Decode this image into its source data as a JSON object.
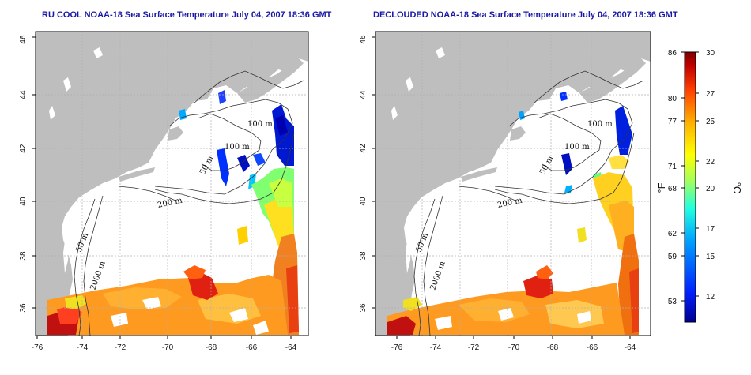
{
  "maps": [
    {
      "title": "RU COOL NOAA-18 Sea Surface Temperature July 04, 2007 18:36 GMT",
      "x_ticks": [
        "-76",
        "-74",
        "-72",
        "-70",
        "-68",
        "-66",
        "-64"
      ],
      "y_ticks": [
        "36",
        "38",
        "40",
        "42",
        "44",
        "46"
      ],
      "contour_labels": [
        "100 m",
        "100 m",
        "50 m",
        "200 m",
        "50 m",
        "2000 m"
      ]
    },
    {
      "title": "DECLOUDED NOAA-18 Sea Surface Temperature July 04, 2007 18:36 GMT",
      "x_ticks": [
        "-76",
        "-74",
        "-72",
        "-70",
        "-68",
        "-66",
        "-64"
      ],
      "y_ticks": [
        "36",
        "38",
        "40",
        "42",
        "44",
        "46"
      ],
      "contour_labels": [
        "100 m",
        "100 m",
        "50 m",
        "200 m",
        "50 m",
        "2000 m"
      ]
    }
  ],
  "colorbar": {
    "fahrenheit_unit": "°F",
    "celsius_unit": "°C",
    "fahrenheit_ticks": [
      "86",
      "80",
      "77",
      "71",
      "68",
      "62",
      "59",
      "53"
    ],
    "celsius_ticks": [
      "30",
      "27",
      "25",
      "22",
      "20",
      "17",
      "15",
      "12"
    ],
    "range_celsius": [
      10,
      30
    ],
    "colors": [
      "#00008f",
      "#0020ff",
      "#00a0ff",
      "#20ffe0",
      "#a0ff60",
      "#ffff00",
      "#ffb000",
      "#ff4000",
      "#c00000",
      "#800000"
    ]
  },
  "colors": {
    "land": "#bebebe",
    "ocean_background": "#ffffff",
    "title_text": "#1a1aa6",
    "grid": "#b0b0b0"
  }
}
